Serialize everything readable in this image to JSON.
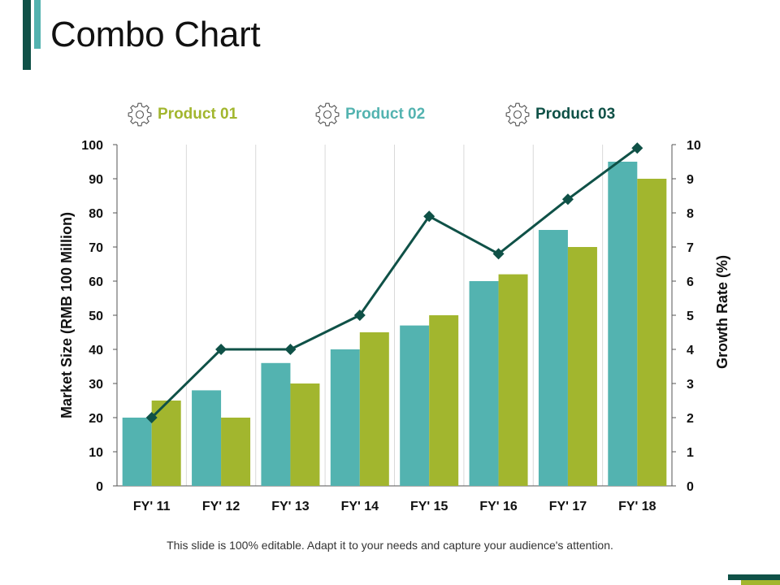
{
  "slide": {
    "title": "Combo Chart",
    "footer": "This slide is 100% editable. Adapt it to your needs and capture your audience's attention."
  },
  "colors": {
    "product_01": "#a2b62e",
    "product_02": "#53b3b0",
    "product_03": "#0f5147",
    "accent_dark": "#0f5147",
    "accent_light": "#53b3b0"
  },
  "legend": [
    {
      "label": "Product 01",
      "icon": "gear-icon",
      "color": "#a2b62e"
    },
    {
      "label": "Product 02",
      "icon": "gear-icon",
      "color": "#53b3b0"
    },
    {
      "label": "Product 03",
      "icon": "gear-icon",
      "color": "#0f5147"
    }
  ],
  "chart_data": {
    "type": "bar",
    "combo": true,
    "categories": [
      "FY' 11",
      "FY' 12",
      "FY' 13",
      "FY' 14",
      "FY' 15",
      "FY' 16",
      "FY' 17",
      "FY' 18"
    ],
    "series": [
      {
        "name": "Product 02",
        "type": "bar",
        "axis": "left",
        "color": "#53b3b0",
        "values": [
          20,
          28,
          36,
          40,
          47,
          60,
          75,
          95
        ]
      },
      {
        "name": "Product 01",
        "type": "bar",
        "axis": "left",
        "color": "#a2b62e",
        "values": [
          25,
          20,
          30,
          45,
          50,
          62,
          70,
          90
        ]
      },
      {
        "name": "Product 03",
        "type": "line",
        "axis": "right",
        "color": "#0f5147",
        "values": [
          2,
          4,
          4,
          5,
          7.9,
          6.8,
          8.4,
          9.9
        ]
      }
    ],
    "ylabel": "Market Size (RMB 100 Million)",
    "y2label": "Growth Rate (%)",
    "ylim": [
      0,
      100
    ],
    "y2lim": [
      0,
      10
    ],
    "yticks": [
      "0",
      "10",
      "20",
      "30",
      "40",
      "50",
      "60",
      "70",
      "80",
      "90",
      "100"
    ],
    "y2ticks": [
      "0",
      "1",
      "2",
      "3",
      "4",
      "5",
      "6",
      "7",
      "8",
      "9",
      "10"
    ],
    "grid": "vertical"
  }
}
